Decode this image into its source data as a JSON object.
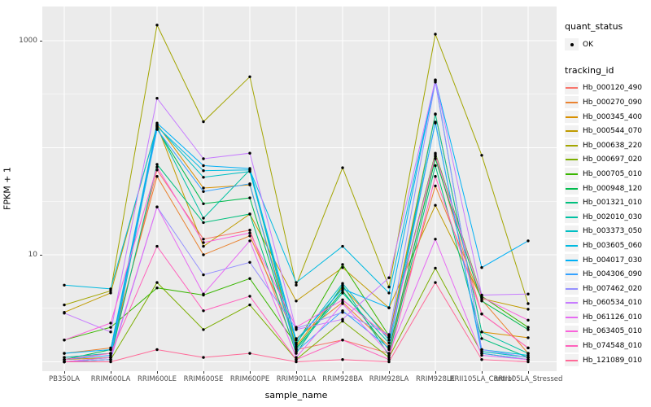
{
  "figure": {
    "x_axis_title": "sample_name",
    "y_axis_title": "FPKM + 1"
  },
  "legend": {
    "quant_status": {
      "title": "quant_status",
      "items": [
        {
          "label": "OK",
          "symbol": "black-point"
        }
      ]
    },
    "tracking_id": {
      "title": "tracking_id"
    }
  },
  "colors": {
    "panel_background": "#EBEBEB",
    "grid": "#FFFFFF",
    "axis_text": "#4D4D4D",
    "point": "#000000",
    "legend_key_background": "#F2F2F2"
  },
  "chart_data": {
    "type": "line",
    "title": "",
    "xlabel": "sample_name",
    "ylabel": "FPKM + 1",
    "y_scale": "log10",
    "ylim": [
      1,
      2000
    ],
    "y_ticks": [
      {
        "label": "1000",
        "value": 1000
      },
      {
        "label": "10",
        "value": 10
      }
    ],
    "grid": "white major gridlines at decades and each category, faint minors at half-decades, on gray panel",
    "legend_position": "right",
    "point_marker": "black dot at every data point (quant_status = OK)",
    "categories": [
      "PB350LA",
      "RRIM600LA",
      "RRIM600LE",
      "RRIM600SE",
      "RRIM600PE",
      "RRIM901LA",
      "RRIM928BA",
      "RRIM928LA",
      "RRIM928LE",
      "RRII105LA_Control",
      "RRII105LA_Stressed"
    ],
    "series": [
      {
        "name": "Hb_000120_490",
        "color": "#F8766D",
        "values": [
          1.1,
          1.2,
          62,
          14,
          17,
          1.3,
          1.6,
          1.2,
          83,
          2.8,
          1.35
        ]
      },
      {
        "name": "Hb_000270_090",
        "color": "#EA8331",
        "values": [
          1.2,
          1.35,
          54,
          10,
          15,
          1.65,
          3.6,
          1.4,
          44,
          3.8,
          1.2
        ]
      },
      {
        "name": "Hb_000345_400",
        "color": "#D89000",
        "values": [
          1.05,
          1.1,
          165,
          42,
          45,
          1.4,
          5.0,
          1.7,
          207,
          1.9,
          1.68
        ]
      },
      {
        "name": "Hb_000544_070",
        "color": "#C09B00",
        "values": [
          2.9,
          4.4,
          162,
          12,
          24,
          3.7,
          7.6,
          3.2,
          29,
          3.9,
          3.1
        ]
      },
      {
        "name": "Hb_000638_220",
        "color": "#A3A500",
        "values": [
          3.4,
          4.6,
          1400,
          175,
          460,
          5.2,
          65,
          5.0,
          1150,
          85,
          3.5
        ]
      },
      {
        "name": "Hb_000697_020",
        "color": "#7CAE00",
        "values": [
          1.0,
          1.05,
          5.5,
          2.0,
          3.4,
          1.05,
          2.4,
          1.1,
          7.5,
          1.2,
          1.05
        ]
      },
      {
        "name": "Hb_000705_010",
        "color": "#39B600",
        "values": [
          1.6,
          2.1,
          4.9,
          4.2,
          6.0,
          1.45,
          8.1,
          1.75,
          89,
          4.1,
          2.1
        ]
      },
      {
        "name": "Hb_000948_120",
        "color": "#00BB4E",
        "values": [
          1.05,
          1.3,
          150,
          30,
          34,
          1.35,
          4.6,
          1.3,
          79,
          3.7,
          2.0
        ]
      },
      {
        "name": "Hb_001321_010",
        "color": "#00BF7D",
        "values": [
          1.0,
          1.1,
          70,
          20,
          24,
          1.2,
          5.2,
          1.15,
          68,
          1.65,
          1.1
        ]
      },
      {
        "name": "Hb_002010_030",
        "color": "#00C1A3",
        "values": [
          1.0,
          1.05,
          155,
          22,
          62,
          1.3,
          4.4,
          1.5,
          205,
          1.9,
          1.2
        ]
      },
      {
        "name": "Hb_003373_050",
        "color": "#00BFC4",
        "values": [
          1.1,
          1.2,
          160,
          53,
          60,
          1.5,
          5.4,
          1.6,
          170,
          1.25,
          1.1
        ]
      },
      {
        "name": "Hb_003605_060",
        "color": "#00BAE0",
        "values": [
          5.2,
          4.8,
          158,
          61,
          62,
          5.5,
          12,
          4.4,
          420,
          1.3,
          1.15
        ]
      },
      {
        "name": "Hb_004017_030",
        "color": "#00B0F6",
        "values": [
          1.2,
          1.3,
          170,
          68,
          64,
          1.6,
          4.8,
          3.2,
          430,
          7.6,
          13.5
        ]
      },
      {
        "name": "Hb_004306_090",
        "color": "#35A2FF",
        "values": [
          1.05,
          1.15,
          148,
          39,
          46,
          1.25,
          3.0,
          1.35,
          174,
          1.2,
          1.05
        ]
      },
      {
        "name": "Hb_007462_020",
        "color": "#9590FF",
        "values": [
          1.0,
          1.05,
          28,
          6.5,
          8.5,
          2.05,
          2.9,
          1.8,
          410,
          1.3,
          1.1
        ]
      },
      {
        "name": "Hb_060534_010",
        "color": "#C77CFF",
        "values": [
          2.85,
          1.9,
          290,
          79,
          89,
          2.0,
          2.5,
          6.1,
          430,
          4.2,
          4.3
        ]
      },
      {
        "name": "Hb_061126_010",
        "color": "#E76BF3",
        "values": [
          1.0,
          1.1,
          28,
          4.3,
          13.5,
          1.1,
          3.5,
          1.2,
          14,
          1.15,
          1.05
        ]
      },
      {
        "name": "Hb_063405_010",
        "color": "#FA62DB",
        "values": [
          1.6,
          2.3,
          66,
          13,
          16,
          2.1,
          3.8,
          1.7,
          86,
          4.0,
          2.45
        ]
      },
      {
        "name": "Hb_074548_010",
        "color": "#FF62BC",
        "values": [
          1.05,
          1.2,
          12,
          3.0,
          4.1,
          1.05,
          1.6,
          1.05,
          54,
          2.8,
          1.35
        ]
      },
      {
        "name": "Hb_121089_010",
        "color": "#FF6A98",
        "values": [
          1.0,
          1.0,
          1.3,
          1.1,
          1.2,
          1.0,
          1.05,
          1.0,
          5.5,
          1.05,
          1.0
        ]
      }
    ]
  }
}
